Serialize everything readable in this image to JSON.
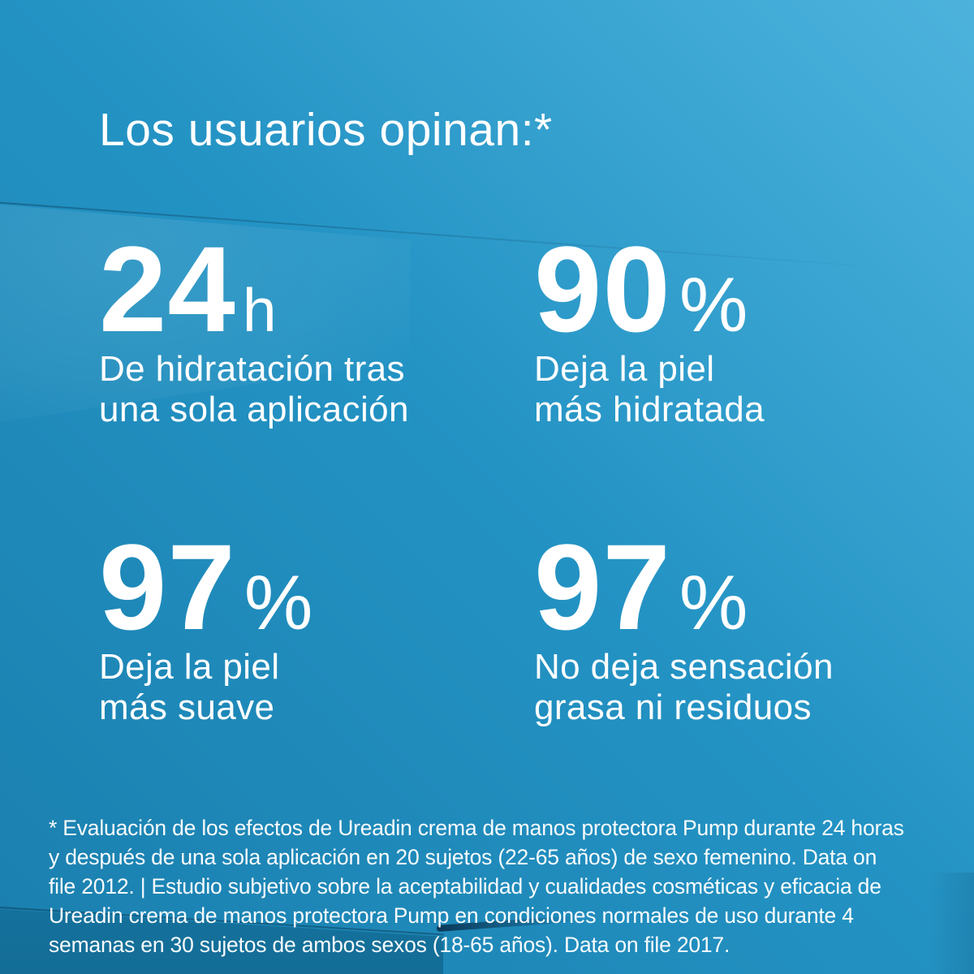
{
  "header": {
    "title": "Los usuarios opinan:*"
  },
  "stats": [
    {
      "value": "24",
      "unit": "h",
      "label": "De hidratación tras\nuna sola aplicación"
    },
    {
      "value": "90",
      "unit": "%",
      "label": "Deja la piel\nmás hidratada"
    },
    {
      "value": "97",
      "unit": "%",
      "label": "Deja la piel\nmás suave"
    },
    {
      "value": "97",
      "unit": "%",
      "label": "No deja sensación\ngrasa ni residuos"
    }
  ],
  "footnote": {
    "lines": [
      "* Evaluación de los efectos de Ureadin crema de manos protectora Pump durante 24 horas",
      "y después de una sola aplicación en 20 sujetos (22-65 años) de sexo femenino. Data on",
      "file 2012. | Estudio subjetivo sobre la aceptabilidad y cualidades cosméticas y eficacia de",
      "Ureadin crema de manos protectora Pump en condiciones normales de uso durante 4",
      "semanas en 30 sujetos de ambos sexos (18-65 años). Data on file 2017."
    ]
  },
  "colors": {
    "background_light": "#4db3dd",
    "background_mid": "#2393c4",
    "background_dark": "#1a7fae",
    "background_fold_dark": "#14719c",
    "fold_shadow": "#0a2a48",
    "text": "#ffffff"
  }
}
